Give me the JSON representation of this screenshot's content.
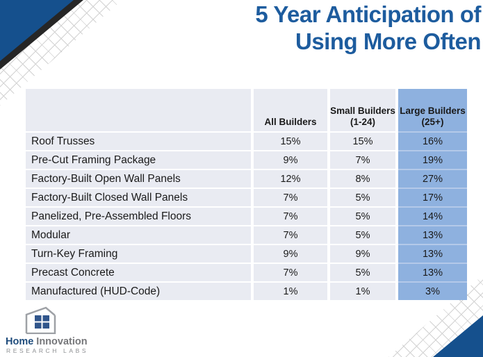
{
  "title": {
    "line1": "5 Year Anticipation of",
    "line2": "Using More Often"
  },
  "table": {
    "columns": [
      {
        "label": "",
        "sub": ""
      },
      {
        "label": "All Builders",
        "sub": ""
      },
      {
        "label": "Small Builders",
        "sub": "(1-24)"
      },
      {
        "label": "Large Builders",
        "sub": "(25+)"
      }
    ],
    "rows": [
      {
        "label": "Roof Trusses",
        "all": "15%",
        "small": "15%",
        "large": "16%"
      },
      {
        "label": "Pre-Cut Framing Package",
        "all": "9%",
        "small": "7%",
        "large": "19%"
      },
      {
        "label": "Factory-Built Open Wall Panels",
        "all": "12%",
        "small": "8%",
        "large": "27%"
      },
      {
        "label": "Factory-Built Closed Wall Panels",
        "all": "7%",
        "small": "5%",
        "large": "17%"
      },
      {
        "label": "Panelized, Pre-Assembled Floors",
        "all": "7%",
        "small": "5%",
        "large": "14%"
      },
      {
        "label": "Modular",
        "all": "7%",
        "small": "5%",
        "large": "13%"
      },
      {
        "label": "Turn-Key Framing",
        "all": "9%",
        "small": "9%",
        "large": "13%"
      },
      {
        "label": "Precast Concrete",
        "all": "7%",
        "small": "5%",
        "large": "13%"
      },
      {
        "label": "Manufactured (HUD-Code)",
        "all": "1%",
        "small": "1%",
        "large": "3%"
      }
    ]
  },
  "chart_data": {
    "type": "table",
    "title": "5 Year Anticipation of Using More Often",
    "categories": [
      "Roof Trusses",
      "Pre-Cut Framing Package",
      "Factory-Built Open Wall Panels",
      "Factory-Built Closed Wall Panels",
      "Panelized, Pre-Assembled Floors",
      "Modular",
      "Turn-Key Framing",
      "Precast Concrete",
      "Manufactured (HUD-Code)"
    ],
    "series": [
      {
        "name": "All Builders",
        "values": [
          15,
          9,
          12,
          7,
          7,
          7,
          9,
          7,
          1
        ]
      },
      {
        "name": "Small Builders (1-24)",
        "values": [
          15,
          7,
          8,
          5,
          5,
          5,
          9,
          5,
          1
        ]
      },
      {
        "name": "Large Builders (25+)",
        "values": [
          16,
          19,
          27,
          17,
          14,
          13,
          13,
          13,
          3
        ]
      }
    ],
    "unit": "%"
  },
  "logo": {
    "brand_primary": "Home",
    "brand_secondary": "Innovation",
    "subtitle": "R E S E A R C H   L A B S",
    "subtitle_plain": "RESEARCH LABS",
    "icon": "house-with-window-icon"
  },
  "colors": {
    "title_blue": "#1d5c9e",
    "corner_navy": "#15508d",
    "corner_stripe": "#262626",
    "table_row_bg": "#e9ebf2",
    "highlight_column_blue": "#8eb1df",
    "highlight_separator": "#b4c9e9",
    "logo_navy": "#1f4c7c",
    "logo_gray": "#76777a"
  }
}
